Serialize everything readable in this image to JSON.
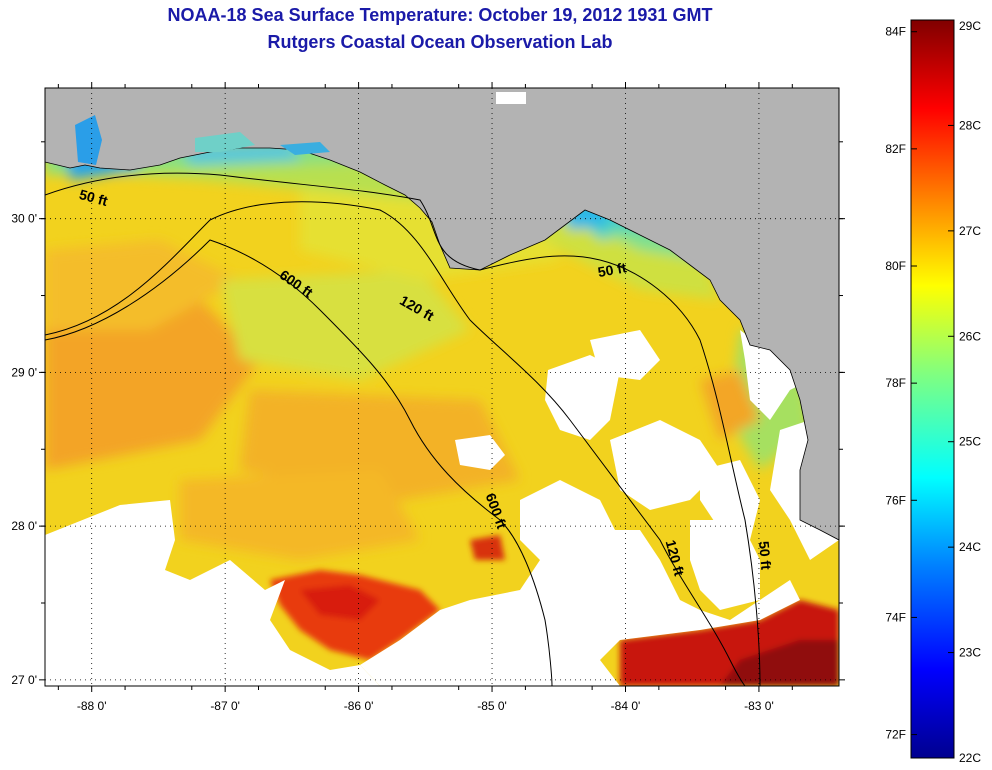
{
  "title_line1": "NOAA-18 Sea Surface Temperature:  October 19, 2012 1931 GMT",
  "title_line2": "Rutgers Coastal Ocean Observation Lab",
  "map": {
    "lon_range": [
      -88.35,
      -82.4
    ],
    "lat_range": [
      26.96,
      30.85
    ],
    "lon_ticks": [
      {
        "value": -88,
        "label": "-88 0'"
      },
      {
        "value": -87,
        "label": "-87 0'"
      },
      {
        "value": -86,
        "label": "-86 0'"
      },
      {
        "value": -85,
        "label": "-85 0'"
      },
      {
        "value": -84,
        "label": "-84 0'"
      },
      {
        "value": -83,
        "label": "-83 0'"
      }
    ],
    "lat_ticks": [
      {
        "value": 27,
        "label": "27 0'"
      },
      {
        "value": 28,
        "label": "28 0'"
      },
      {
        "value": 29,
        "label": "29 0'"
      },
      {
        "value": 30,
        "label": "30 0'"
      }
    ],
    "grid": "dotted",
    "land_color": "#b3b3b3",
    "cloud_color": "#ffffff",
    "contour_labels": [
      {
        "text": "50 ft",
        "lon": -88.1,
        "lat": 30.13,
        "rotate": 15
      },
      {
        "text": "600 ft",
        "lon": -86.6,
        "lat": 29.62,
        "rotate": 35
      },
      {
        "text": "120 ft",
        "lon": -85.7,
        "lat": 29.45,
        "rotate": 30
      },
      {
        "text": "50 ft",
        "lon": -84.2,
        "lat": 29.62,
        "rotate": -10
      },
      {
        "text": "600 ft",
        "lon": -85.05,
        "lat": 28.2,
        "rotate": 70
      },
      {
        "text": "120 ft",
        "lon": -83.7,
        "lat": 27.9,
        "rotate": 75
      },
      {
        "text": "50 ft",
        "lon": -83.0,
        "lat": 27.9,
        "rotate": 85
      }
    ]
  },
  "colorbar": {
    "celsius_ticks": [
      {
        "value": 29,
        "label": "29C"
      },
      {
        "value": 28,
        "label": "28C"
      },
      {
        "value": 27,
        "label": "27C"
      },
      {
        "value": 26,
        "label": "26C"
      },
      {
        "value": 25,
        "label": "25C"
      },
      {
        "value": 24,
        "label": "24C"
      },
      {
        "value": 23,
        "label": "23C"
      },
      {
        "value": 22,
        "label": "22C"
      }
    ],
    "fahrenheit_ticks": [
      {
        "value": 84,
        "label": "84F"
      },
      {
        "value": 82,
        "label": "82F"
      },
      {
        "value": 80,
        "label": "80F"
      },
      {
        "value": 78,
        "label": "78F"
      },
      {
        "value": 76,
        "label": "76F"
      },
      {
        "value": 74,
        "label": "74F"
      },
      {
        "value": 72,
        "label": "72F"
      }
    ],
    "range_c": [
      22,
      29
    ],
    "colors": [
      "#00008f",
      "#0000ff",
      "#0080ff",
      "#00ffff",
      "#80ff80",
      "#ffff00",
      "#ff8000",
      "#ff0000",
      "#800000"
    ]
  }
}
